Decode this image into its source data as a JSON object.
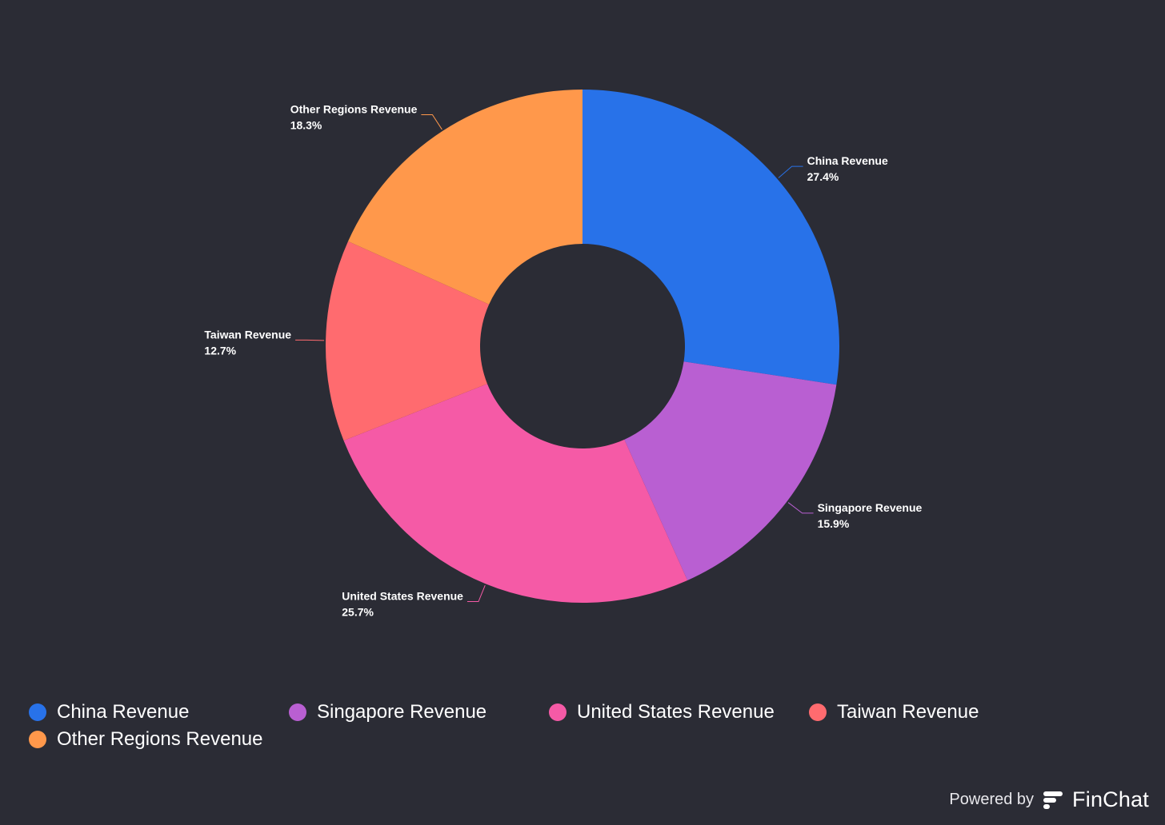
{
  "chart_data": {
    "type": "pie",
    "donut": true,
    "categories": [
      "China Revenue",
      "Singapore Revenue",
      "United States Revenue",
      "Taiwan Revenue",
      "Other Regions Revenue"
    ],
    "values": [
      27.4,
      15.9,
      25.7,
      12.7,
      18.3
    ],
    "value_labels": [
      "27.4%",
      "15.9%",
      "25.7%",
      "12.7%",
      "18.3%"
    ],
    "colors": [
      "#2872e9",
      "#b95fd2",
      "#f55aa6",
      "#ff6b6f",
      "#ff984b"
    ],
    "legend_position": "bottom-left"
  },
  "branding": {
    "powered_by": "Powered by",
    "brand": "FinChat",
    "icon": "finchat-logo-icon"
  }
}
